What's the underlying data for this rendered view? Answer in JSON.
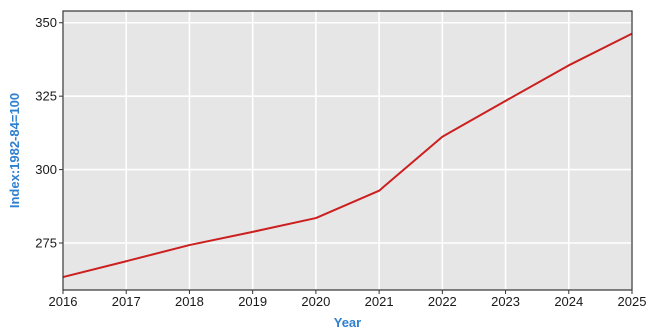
{
  "chart_data": {
    "type": "line",
    "title": "",
    "xlabel": "Year",
    "ylabel": "Index:1982-84=100",
    "x": [
      2016,
      2017,
      2018,
      2019,
      2020,
      2021,
      2022,
      2023,
      2024,
      2025
    ],
    "series": [
      {
        "values": [
          263.4,
          268.8,
          274.3,
          278.8,
          283.5,
          292.8,
          311.2,
          323.4,
          335.5,
          346.3
        ],
        "color": "#cc1f1f"
      }
    ],
    "xlim": [
      2016,
      2025
    ],
    "ylim": [
      259,
      354
    ],
    "xticks": [
      "2016",
      "2017",
      "2018",
      "2019",
      "2020",
      "2021",
      "2022",
      "2023",
      "2024",
      "2025"
    ],
    "yticks": [
      "275",
      "300",
      "325",
      "350"
    ],
    "grid": true,
    "plot_background": "#e6e6e6",
    "axis_label_color": "#2f7fcf"
  }
}
